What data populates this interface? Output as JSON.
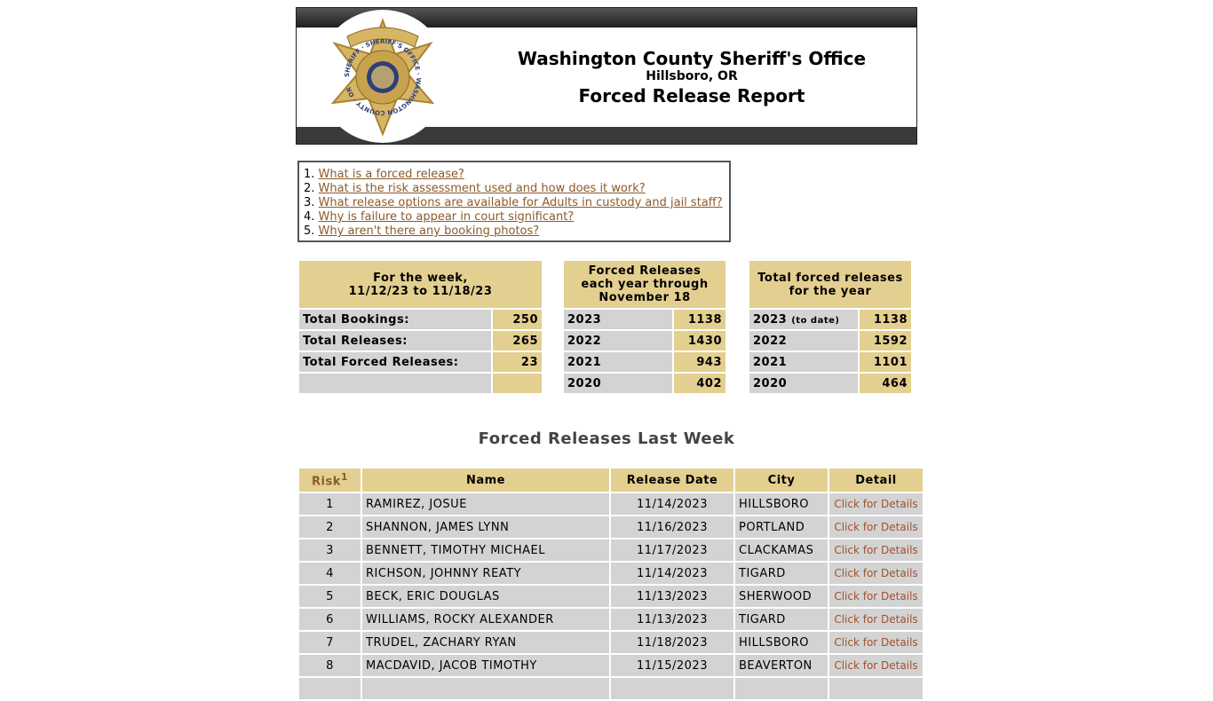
{
  "header": {
    "title": "Washington County Sheriff's Office",
    "location": "Hillsboro, OR",
    "report": "Forced Release Report",
    "badge_text": "SHERIFF · SHERIFF'S OFFICE · WASHINGTON COUNTY · OR"
  },
  "faq": [
    {
      "num": "1.",
      "label": "What is a forced release?"
    },
    {
      "num": "2.",
      "label": "What is the risk assessment used and how does it work?"
    },
    {
      "num": "3.",
      "label": "What release options are available for Adults in custody and jail staff?"
    },
    {
      "num": "4.",
      "label": "Why is failure to appear in court significant?"
    },
    {
      "num": "5.",
      "label": "Why aren't there any booking photos?"
    }
  ],
  "week": {
    "heading1": "For the week,",
    "heading2": "11/12/23 to 11/18/23",
    "rows": [
      {
        "label": "Total Bookings:",
        "value": "250"
      },
      {
        "label": "Total Releases:",
        "value": "265"
      },
      {
        "label": "Total Forced Releases:",
        "value": "23"
      },
      {
        "label": "",
        "value": ""
      }
    ]
  },
  "through": {
    "heading1": "Forced Releases",
    "heading2": "each year through",
    "heading3": "November 18",
    "rows": [
      {
        "year": "2023",
        "value": "1138"
      },
      {
        "year": "2022",
        "value": "1430"
      },
      {
        "year": "2021",
        "value": "943"
      },
      {
        "year": "2020",
        "value": "402"
      }
    ]
  },
  "yearly": {
    "heading1": "Total forced releases",
    "heading2": "for the year",
    "to_date": "(to date)",
    "rows": [
      {
        "year": "2023",
        "value": "1138"
      },
      {
        "year": "2022",
        "value": "1592"
      },
      {
        "year": "2021",
        "value": "1101"
      },
      {
        "year": "2020",
        "value": "464"
      }
    ]
  },
  "list": {
    "title": "Forced Releases Last Week",
    "columns": {
      "risk": "Risk",
      "risk_sup": "1",
      "name": "Name",
      "date": "Release Date",
      "city": "City",
      "detail": "Detail"
    },
    "rows": [
      {
        "risk": "1",
        "name": "RAMIREZ, JOSUE",
        "date": "11/14/2023",
        "city": "HILLSBORO",
        "detail": "Click for Details"
      },
      {
        "risk": "2",
        "name": "SHANNON, JAMES LYNN",
        "date": "11/16/2023",
        "city": "PORTLAND",
        "detail": "Click for Details"
      },
      {
        "risk": "3",
        "name": "BENNETT, TIMOTHY MICHAEL",
        "date": "11/17/2023",
        "city": "CLACKAMAS",
        "detail": "Click for Details"
      },
      {
        "risk": "4",
        "name": "RICHSON, JOHNNY REATY",
        "date": "11/14/2023",
        "city": "TIGARD",
        "detail": "Click for Details"
      },
      {
        "risk": "5",
        "name": "BECK, ERIC DOUGLAS",
        "date": "11/13/2023",
        "city": "SHERWOOD",
        "detail": "Click for Details"
      },
      {
        "risk": "6",
        "name": "WILLIAMS, ROCKY ALEXANDER",
        "date": "11/13/2023",
        "city": "TIGARD",
        "detail": "Click for Details"
      },
      {
        "risk": "7",
        "name": "TRUDEL, ZACHARY RYAN",
        "date": "11/18/2023",
        "city": "HILLSBORO",
        "detail": "Click for Details"
      },
      {
        "risk": "8",
        "name": "MACDAVID, JACOB TIMOTHY",
        "date": "11/15/2023",
        "city": "BEAVERTON",
        "detail": "Click for Details"
      }
    ]
  }
}
